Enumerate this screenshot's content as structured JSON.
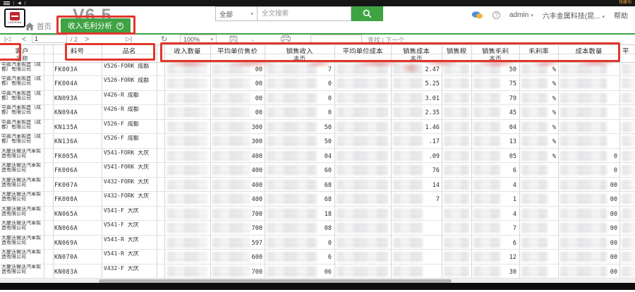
{
  "topbar": {
    "right_text": "快建功"
  },
  "header": {
    "logo_text": "LIUFENG",
    "version": "V6.5",
    "search_scope": "全部",
    "search_placeholder": "全文搜索",
    "user": "admin",
    "company": "六丰金属科技(昆...",
    "help": "帮助"
  },
  "nav": {
    "home": "首页",
    "active_tab": "收入毛利分析"
  },
  "toolbar": {
    "page": "1",
    "page_total": "/ 2",
    "zoom": "100%",
    "find_label": "查找 | 下一个"
  },
  "table": {
    "headers": {
      "customer": "客户",
      "customer_sub": "名称",
      "part_no": "料号",
      "product": "品名",
      "qty": "收入数量",
      "avg_price": "平均单位售价",
      "revenue": "销售收入",
      "currency_sub": "本币",
      "avg_unit_cost": "平均单位成本",
      "cost": "销售成本",
      "tax": "销售税",
      "profit": "销售毛利",
      "margin": "毛利率",
      "cost_qty": "成本数量",
      "next_partial": "平"
    },
    "rows": [
      {
        "customer": "中嘉汽車製造（成都）有限公司",
        "part_no": "FK003A",
        "product": "V526-FORK 成都",
        "price": "00",
        "revenue": "7",
        "cost": "2.47",
        "profit": "50",
        "margin": "%",
        "cost_qty": ""
      },
      {
        "customer": "中嘉汽車製造（成都）有限公司",
        "part_no": "FK004A",
        "product": "V526-FORK 成都",
        "price": "00",
        "revenue": "0",
        "cost": "5.25",
        "profit": "75",
        "margin": "%",
        "cost_qty": ""
      },
      {
        "customer": "中嘉汽車製造（成都）有限公司",
        "part_no": "KN093A",
        "product": "V426-R 成都",
        "price": "00",
        "revenue": "0",
        "cost": "3.01",
        "profit": "79",
        "margin": "%",
        "cost_qty": ""
      },
      {
        "customer": "中嘉汽車製造（成都）有限公司",
        "part_no": "KN094A",
        "product": "V426-R 成都",
        "price": "00",
        "revenue": "0",
        "cost": "2.35",
        "profit": "45",
        "margin": "%",
        "cost_qty": ""
      },
      {
        "customer": "中嘉汽車製造（成都）有限公司",
        "part_no": "KN135A",
        "product": "V526-F 成都",
        "price": "300",
        "revenue": "50",
        "cost": "1.46",
        "profit": "04",
        "margin": "%",
        "cost_qty": ""
      },
      {
        "customer": "中嘉汽車製造（成都）有限公司",
        "part_no": "KN136A",
        "product": "V526-F 成都",
        "price": "300",
        "revenue": "50",
        "cost": ".17",
        "profit": "13",
        "margin": "%",
        "cost_qty": ""
      },
      {
        "customer": "大慶沃爾沃汽車製造有限公司",
        "part_no": "FK005A",
        "product": "V541-FORK 大庆",
        "price": "400",
        "revenue": "04",
        "cost": ".09",
        "profit": "05",
        "margin": "%",
        "cost_qty": "0"
      },
      {
        "customer": "大慶沃爾沃汽車製造有限公司",
        "part_no": "FK006A",
        "product": "V541-FORK 大庆",
        "price": "400",
        "revenue": "60",
        "cost": "76",
        "profit": "6",
        "margin": "",
        "cost_qty": "0"
      },
      {
        "customer": "大慶沃爾沃汽車製造有限公司",
        "part_no": "FK007A",
        "product": "V432-FORK 大庆",
        "price": "400",
        "revenue": "68",
        "cost": "14",
        "profit": "4",
        "margin": "",
        "cost_qty": "00"
      },
      {
        "customer": "大慶沃爾沃汽車製造有限公司",
        "part_no": "FK008A",
        "product": "V432-FORK 大庆",
        "price": "400",
        "revenue": "68",
        "cost": "7",
        "profit": "1",
        "margin": "",
        "cost_qty": "00"
      },
      {
        "customer": "大慶沃爾沃汽車製造有限公司",
        "part_no": "KN065A",
        "product": "V541-F 大庆",
        "price": "700",
        "revenue": "18",
        "cost": "",
        "profit": "4",
        "margin": "",
        "cost_qty": "00"
      },
      {
        "customer": "大慶沃爾沃汽車製造有限公司",
        "part_no": "KN066A",
        "product": "V541-F 大庆",
        "price": "700",
        "revenue": "08",
        "cost": "",
        "profit": "7",
        "margin": "",
        "cost_qty": "00"
      },
      {
        "customer": "大慶沃爾沃汽車製造有限公司",
        "part_no": "KN069A",
        "product": "V541-R 大庆",
        "price": "597",
        "revenue": "0",
        "cost": "",
        "profit": "6",
        "margin": "",
        "cost_qty": "00"
      },
      {
        "customer": "大慶沃爾沃汽車製造有限公司",
        "part_no": "KN070A",
        "product": "V541-R 大庆",
        "price": "600",
        "revenue": "6",
        "cost": "",
        "profit": "12",
        "margin": "",
        "cost_qty": "00"
      },
      {
        "customer": "大慶沃爾沃汽車製造有限公司",
        "part_no": "KN083A",
        "product": "V432-F 大庆",
        "price": "700",
        "revenue": "06",
        "cost": "",
        "profit": "30",
        "margin": "",
        "cost_qty": "00"
      }
    ]
  }
}
